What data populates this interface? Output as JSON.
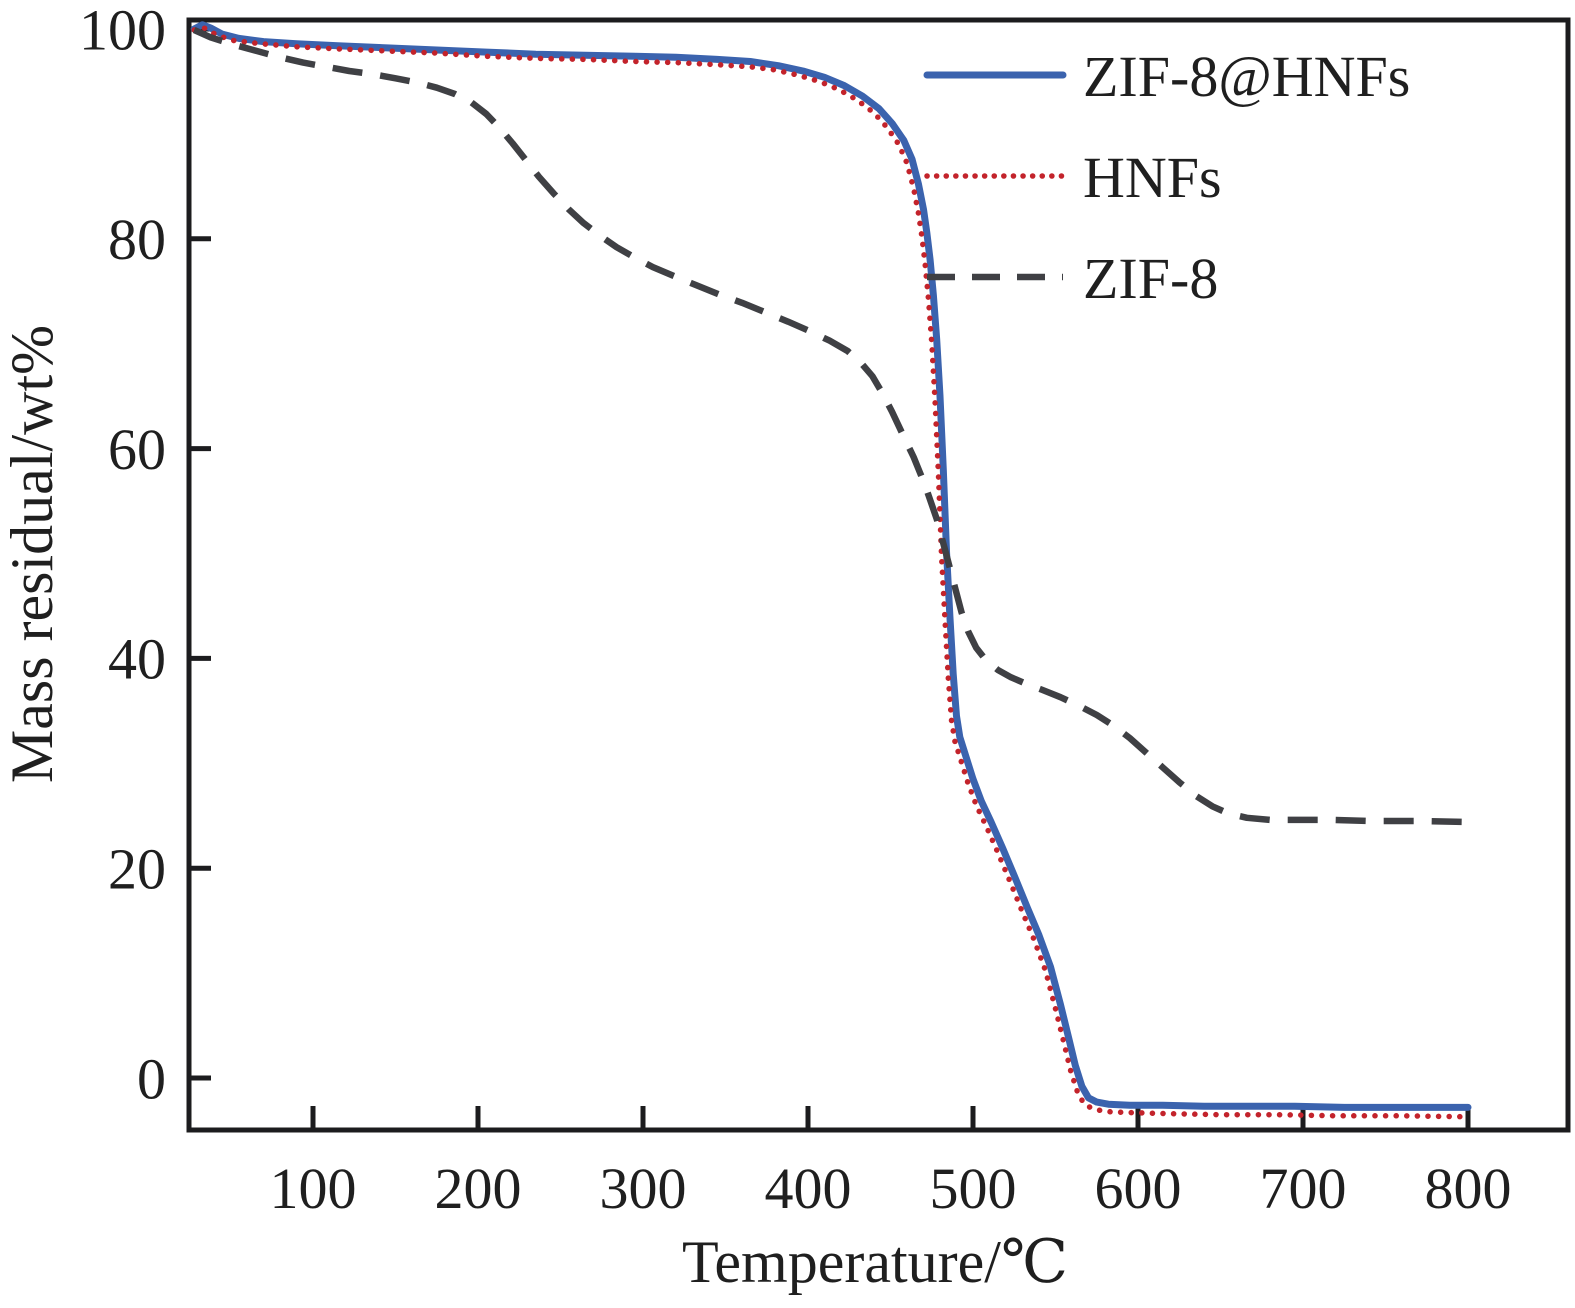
{
  "figure": {
    "background": "#ffffff"
  },
  "colors": {
    "axis": "#1c1c1e",
    "text": "#1f1f1f"
  },
  "chart_data": {
    "type": "line",
    "title": "",
    "xlabel": "Temperature/℃",
    "ylabel": "Mass residual/wt%",
    "grid": false,
    "legend_position": "upper-right-inside",
    "x_axis": {
      "min": 25,
      "max": 860,
      "ticks": [
        100,
        200,
        300,
        400,
        500,
        600,
        700,
        800
      ]
    },
    "y_axis": {
      "min": -5,
      "max": 101,
      "ticks": [
        0,
        20,
        40,
        60,
        80,
        100
      ]
    },
    "series": [
      {
        "name": "ZIF-8@HNFs",
        "color": "#3b63ae",
        "style": "solid",
        "points": [
          [
            28,
            100
          ],
          [
            33,
            100.4
          ],
          [
            38,
            100.1
          ],
          [
            45,
            99.5
          ],
          [
            55,
            99.1
          ],
          [
            70,
            98.8
          ],
          [
            90,
            98.6
          ],
          [
            115,
            98.4
          ],
          [
            145,
            98.2
          ],
          [
            175,
            98.0
          ],
          [
            205,
            97.8
          ],
          [
            235,
            97.6
          ],
          [
            265,
            97.5
          ],
          [
            295,
            97.4
          ],
          [
            320,
            97.3
          ],
          [
            345,
            97.1
          ],
          [
            365,
            96.9
          ],
          [
            382,
            96.5
          ],
          [
            397,
            96.0
          ],
          [
            410,
            95.4
          ],
          [
            422,
            94.6
          ],
          [
            433,
            93.6
          ],
          [
            443,
            92.4
          ],
          [
            451,
            91.0
          ],
          [
            458,
            89.4
          ],
          [
            463,
            87.6
          ],
          [
            467,
            85.2
          ],
          [
            470,
            82.8
          ],
          [
            472,
            80.6
          ],
          [
            474,
            78.0
          ],
          [
            476,
            74.6
          ],
          [
            478,
            70.4
          ],
          [
            480,
            65.0
          ],
          [
            482,
            58.0
          ],
          [
            484,
            50.0
          ],
          [
            486,
            44.0
          ],
          [
            488,
            38.5
          ],
          [
            490,
            34.5
          ],
          [
            492,
            32.5
          ],
          [
            496,
            30.5
          ],
          [
            500,
            28.5
          ],
          [
            505,
            26.4
          ],
          [
            511,
            24.4
          ],
          [
            518,
            21.9
          ],
          [
            526,
            18.9
          ],
          [
            533,
            16.2
          ],
          [
            540,
            13.6
          ],
          [
            547,
            10.6
          ],
          [
            553,
            7.0
          ],
          [
            558,
            3.8
          ],
          [
            562,
            1.2
          ],
          [
            566,
            -0.8
          ],
          [
            570,
            -1.9
          ],
          [
            575,
            -2.3
          ],
          [
            582,
            -2.5
          ],
          [
            595,
            -2.6
          ],
          [
            615,
            -2.6
          ],
          [
            640,
            -2.7
          ],
          [
            665,
            -2.7
          ],
          [
            695,
            -2.7
          ],
          [
            725,
            -2.8
          ],
          [
            760,
            -2.8
          ],
          [
            800,
            -2.8
          ]
        ]
      },
      {
        "name": "HNFs",
        "color": "#c3232b",
        "style": "dotted",
        "points": [
          [
            28,
            99.9
          ],
          [
            34,
            100.1
          ],
          [
            42,
            99.4
          ],
          [
            52,
            98.9
          ],
          [
            68,
            98.6
          ],
          [
            90,
            98.3
          ],
          [
            115,
            98.1
          ],
          [
            145,
            97.9
          ],
          [
            175,
            97.7
          ],
          [
            205,
            97.4
          ],
          [
            235,
            97.2
          ],
          [
            265,
            97.1
          ],
          [
            295,
            96.9
          ],
          [
            320,
            96.8
          ],
          [
            345,
            96.6
          ],
          [
            365,
            96.4
          ],
          [
            380,
            96.1
          ],
          [
            394,
            95.6
          ],
          [
            407,
            95.0
          ],
          [
            419,
            94.2
          ],
          [
            430,
            93.2
          ],
          [
            440,
            92.0
          ],
          [
            448,
            90.6
          ],
          [
            455,
            89.0
          ],
          [
            460,
            87.2
          ],
          [
            464,
            84.8
          ],
          [
            467,
            82.4
          ],
          [
            469,
            80.2
          ],
          [
            471,
            77.6
          ],
          [
            473,
            74.2
          ],
          [
            475,
            70.0
          ],
          [
            477,
            64.6
          ],
          [
            479,
            57.6
          ],
          [
            481,
            49.6
          ],
          [
            483,
            43.6
          ],
          [
            485,
            38.1
          ],
          [
            487,
            34.1
          ],
          [
            489,
            32.1
          ],
          [
            493,
            30.1
          ],
          [
            497,
            28.1
          ],
          [
            502,
            26.0
          ],
          [
            508,
            24.0
          ],
          [
            515,
            21.5
          ],
          [
            523,
            18.5
          ],
          [
            530,
            15.8
          ],
          [
            537,
            13.2
          ],
          [
            544,
            10.2
          ],
          [
            550,
            6.6
          ],
          [
            555,
            3.4
          ],
          [
            559,
            0.8
          ],
          [
            563,
            -1.2
          ],
          [
            567,
            -2.4
          ],
          [
            572,
            -2.9
          ],
          [
            580,
            -3.2
          ],
          [
            595,
            -3.3
          ],
          [
            620,
            -3.4
          ],
          [
            650,
            -3.5
          ],
          [
            685,
            -3.5
          ],
          [
            720,
            -3.6
          ],
          [
            760,
            -3.6
          ],
          [
            800,
            -3.7
          ]
        ]
      },
      {
        "name": "ZIF-8",
        "color": "#3f4044",
        "style": "dashed",
        "points": [
          [
            28,
            99.9
          ],
          [
            38,
            99.2
          ],
          [
            52,
            98.5
          ],
          [
            66,
            97.9
          ],
          [
            80,
            97.3
          ],
          [
            94,
            96.8
          ],
          [
            108,
            96.4
          ],
          [
            122,
            96.0
          ],
          [
            136,
            95.7
          ],
          [
            150,
            95.3
          ],
          [
            163,
            94.9
          ],
          [
            175,
            94.4
          ],
          [
            186,
            93.8
          ],
          [
            196,
            93.0
          ],
          [
            205,
            91.9
          ],
          [
            213,
            90.6
          ],
          [
            221,
            89.1
          ],
          [
            229,
            87.5
          ],
          [
            237,
            85.9
          ],
          [
            246,
            84.3
          ],
          [
            255,
            82.8
          ],
          [
            264,
            81.5
          ],
          [
            274,
            80.3
          ],
          [
            284,
            79.2
          ],
          [
            294,
            78.3
          ],
          [
            306,
            77.3
          ],
          [
            318,
            76.5
          ],
          [
            332,
            75.6
          ],
          [
            346,
            74.7
          ],
          [
            360,
            73.9
          ],
          [
            374,
            73.0
          ],
          [
            388,
            72.1
          ],
          [
            401,
            71.2
          ],
          [
            413,
            70.3
          ],
          [
            424,
            69.3
          ],
          [
            432,
            68.2
          ],
          [
            439,
            66.9
          ],
          [
            445,
            65.3
          ],
          [
            451,
            63.5
          ],
          [
            457,
            61.5
          ],
          [
            464,
            59.2
          ],
          [
            471,
            56.5
          ],
          [
            478,
            53.3
          ],
          [
            484,
            49.8
          ],
          [
            489,
            46.8
          ],
          [
            493,
            44.4
          ],
          [
            497,
            42.6
          ],
          [
            502,
            41.0
          ],
          [
            508,
            39.8
          ],
          [
            515,
            38.9
          ],
          [
            523,
            38.2
          ],
          [
            532,
            37.6
          ],
          [
            542,
            37.0
          ],
          [
            553,
            36.3
          ],
          [
            564,
            35.5
          ],
          [
            575,
            34.6
          ],
          [
            585,
            33.6
          ],
          [
            595,
            32.4
          ],
          [
            605,
            31.0
          ],
          [
            615,
            29.6
          ],
          [
            625,
            28.2
          ],
          [
            635,
            26.9
          ],
          [
            645,
            25.9
          ],
          [
            655,
            25.2
          ],
          [
            666,
            24.8
          ],
          [
            680,
            24.6
          ],
          [
            697,
            24.6
          ],
          [
            717,
            24.6
          ],
          [
            742,
            24.5
          ],
          [
            770,
            24.5
          ],
          [
            800,
            24.4
          ]
        ]
      }
    ],
    "legend": {
      "items": [
        "ZIF-8@HNFs",
        "HNFs",
        "ZIF-8"
      ]
    }
  }
}
